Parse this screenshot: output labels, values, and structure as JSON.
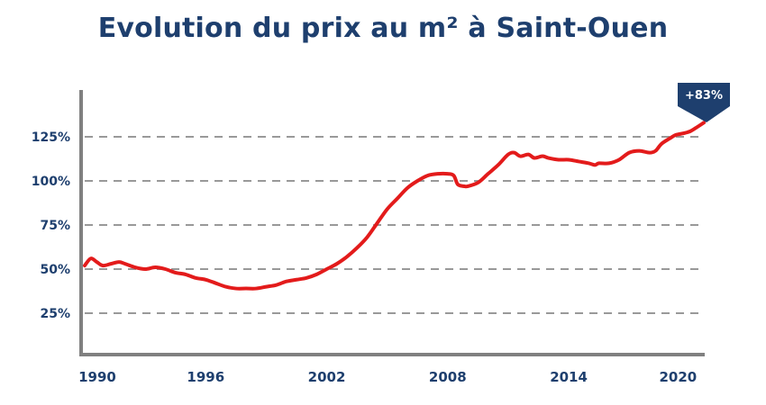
{
  "chart_data": {
    "type": "line",
    "title": "Evolution du prix au m² à Saint-Ouen",
    "xlabel": "",
    "ylabel": "",
    "x_ticks": [
      "1990",
      "1996",
      "2002",
      "2008",
      "2014",
      "2020"
    ],
    "y_ticks": [
      "25%",
      "50%",
      "75%",
      "100%",
      "125%"
    ],
    "xlim": [
      1990,
      2020.7
    ],
    "ylim": [
      0,
      150
    ],
    "grid": "horizontal dashed",
    "annotation": "+83%",
    "series": [
      {
        "color": "#e31b1b",
        "points": [
          [
            1990.0,
            52
          ],
          [
            1990.3,
            56
          ],
          [
            1990.6,
            54
          ],
          [
            1990.9,
            52
          ],
          [
            1991.3,
            53
          ],
          [
            1991.7,
            54
          ],
          [
            1992.0,
            53
          ],
          [
            1992.5,
            51
          ],
          [
            1993.0,
            50
          ],
          [
            1993.5,
            51
          ],
          [
            1994.0,
            50
          ],
          [
            1994.5,
            48
          ],
          [
            1995.0,
            47
          ],
          [
            1995.5,
            45
          ],
          [
            1996.0,
            44
          ],
          [
            1996.5,
            42
          ],
          [
            1997.0,
            40
          ],
          [
            1997.5,
            39
          ],
          [
            1998.0,
            39
          ],
          [
            1998.5,
            39
          ],
          [
            1999.0,
            40
          ],
          [
            1999.5,
            41
          ],
          [
            2000.0,
            43
          ],
          [
            2000.5,
            44
          ],
          [
            2001.0,
            45
          ],
          [
            2001.5,
            47
          ],
          [
            2002.0,
            50
          ],
          [
            2002.5,
            53
          ],
          [
            2003.0,
            57
          ],
          [
            2003.5,
            62
          ],
          [
            2004.0,
            68
          ],
          [
            2004.5,
            76
          ],
          [
            2005.0,
            84
          ],
          [
            2005.5,
            90
          ],
          [
            2006.0,
            96
          ],
          [
            2006.5,
            100
          ],
          [
            2007.0,
            103
          ],
          [
            2007.5,
            104
          ],
          [
            2008.0,
            104
          ],
          [
            2008.3,
            103
          ],
          [
            2008.5,
            98
          ],
          [
            2008.8,
            97
          ],
          [
            2009.0,
            97
          ],
          [
            2009.5,
            99
          ],
          [
            2010.0,
            104
          ],
          [
            2010.5,
            109
          ],
          [
            2011.0,
            115
          ],
          [
            2011.3,
            116
          ],
          [
            2011.6,
            114
          ],
          [
            2012.0,
            115
          ],
          [
            2012.3,
            113
          ],
          [
            2012.7,
            114
          ],
          [
            2013.0,
            113
          ],
          [
            2013.5,
            112
          ],
          [
            2014.0,
            112
          ],
          [
            2014.5,
            111
          ],
          [
            2015.0,
            110
          ],
          [
            2015.3,
            109
          ],
          [
            2015.5,
            110
          ],
          [
            2016.0,
            110
          ],
          [
            2016.5,
            112
          ],
          [
            2017.0,
            116
          ],
          [
            2017.5,
            117
          ],
          [
            2018.0,
            116
          ],
          [
            2018.3,
            117
          ],
          [
            2018.6,
            121
          ],
          [
            2019.0,
            124
          ],
          [
            2019.3,
            126
          ],
          [
            2019.7,
            127
          ],
          [
            2020.0,
            128
          ],
          [
            2020.3,
            130
          ],
          [
            2020.7,
            133
          ]
        ]
      }
    ]
  },
  "colors": {
    "title": "#1e3f6e",
    "axis": "#808080",
    "grid": "#999999",
    "line": "#e31b1b",
    "badge": "#1e3f6e"
  }
}
